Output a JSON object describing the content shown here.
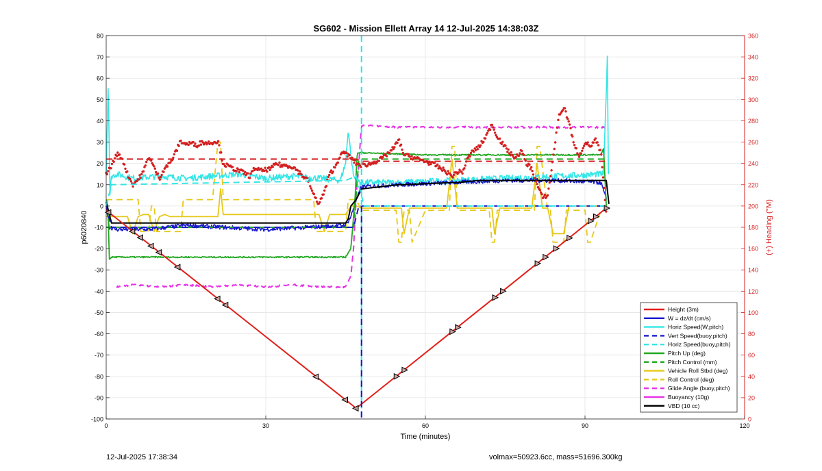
{
  "footer": {
    "timestamp": "12-Jul-2025 17:38:34",
    "mass_info": "volmax=50923.6cc, mass=51696.300kg"
  },
  "chart_data": {
    "type": "line",
    "title": "SG602 - Mission Ellett Array 14 12-Jul-2025 14:38:03Z",
    "xlabel": "Time (minutes)",
    "ylabel_left": "p6020840",
    "ylabel_right": "(+) Heading (°M)",
    "xlim": [
      0,
      120
    ],
    "ylim_left": [
      -100,
      80
    ],
    "ylim_right": [
      0,
      360
    ],
    "xticks": [
      0,
      30,
      60,
      90,
      120
    ],
    "yticks_left": [
      80,
      70,
      60,
      50,
      40,
      30,
      20,
      10,
      0,
      -10,
      -20,
      -30,
      -40,
      -50,
      -60,
      -70,
      -80,
      -90,
      -100
    ],
    "yticks_right": [
      360,
      340,
      320,
      300,
      280,
      260,
      240,
      220,
      200,
      180,
      160,
      140,
      120,
      100,
      80,
      60,
      40,
      20,
      0
    ],
    "grid": true,
    "legend_position": "bottom-right",
    "colors": {
      "height": "#e0201b",
      "w": "#1a1acc",
      "horiz_speed": "#33e6e6",
      "pitch_up": "#22a822",
      "roll": "#e6c81a",
      "glide": "#e633e6",
      "vbd": "#000000",
      "heading": "#d42020",
      "right_axis": "#d42020"
    },
    "legend": [
      {
        "label": "Height (3m)",
        "color": "#e0201b",
        "style": "solid"
      },
      {
        "label": "W = dz/dt (cm/s)",
        "color": "#1a1acc",
        "style": "solid"
      },
      {
        "label": "Horiz Speed(W,pitch)",
        "color": "#33e6e6",
        "style": "solid"
      },
      {
        "label": "Vert Speed(buoy,pitch)",
        "color": "#1a1acc",
        "style": "dashed"
      },
      {
        "label": "Horiz Speed(buoy,pitch)",
        "color": "#33e6e6",
        "style": "dashed"
      },
      {
        "label": "Pitch Up (deg)",
        "color": "#22a822",
        "style": "solid"
      },
      {
        "label": "Pitch Control (mm)",
        "color": "#22a822",
        "style": "dashed"
      },
      {
        "label": "Vehicle Roll Stbd (deg)",
        "color": "#e6c81a",
        "style": "solid"
      },
      {
        "label": "Roll Control (deg)",
        "color": "#e6c81a",
        "style": "dashed"
      },
      {
        "label": "Glide Angle (buoy,pitch)",
        "color": "#e633e6",
        "style": "dashed"
      },
      {
        "label": "Buoyancy (10g)",
        "color": "#e633e6",
        "style": "solid"
      },
      {
        "label": "VBD (10 cc)",
        "color": "#000000",
        "style": "solid"
      }
    ],
    "series": [
      {
        "key": "height",
        "axis": "left",
        "color": "#e0201b",
        "style": "solid",
        "width": 2,
        "x": [
          0,
          47,
          94
        ],
        "y": [
          -2,
          -95,
          -1
        ]
      },
      {
        "key": "w",
        "axis": "left",
        "color": "#1a1acc",
        "style": "solid",
        "width": 1.6,
        "noise": 1.0,
        "x": [
          0,
          0.6,
          2,
          8,
          15,
          22,
          30,
          38,
          45,
          46,
          47,
          48,
          55,
          65,
          75,
          85,
          93,
          94
        ],
        "y": [
          0,
          -10,
          -11,
          -11,
          -9,
          -10,
          -11,
          -10,
          -9,
          -5,
          3,
          9,
          10,
          11,
          12,
          12,
          11,
          3
        ]
      },
      {
        "key": "horiz_speed",
        "axis": "left",
        "color": "#33e6e6",
        "style": "solid",
        "width": 1.6,
        "noise": 1.5,
        "x": [
          0,
          0.4,
          0.7,
          1,
          2,
          5,
          10,
          15,
          20,
          25,
          30,
          35,
          40,
          44,
          45,
          45.5,
          46,
          46.5,
          47,
          48,
          55,
          65,
          75,
          85,
          93,
          93.5,
          94,
          94.2,
          94.4
        ],
        "y": [
          15,
          60,
          5,
          14,
          15,
          13,
          14,
          13,
          14,
          15,
          13,
          14,
          13,
          12,
          20,
          36,
          24,
          14,
          12,
          11,
          11,
          12,
          13,
          14,
          15,
          15,
          55,
          69,
          15
        ]
      },
      {
        "key": "vert_speed_buoy",
        "axis": "left",
        "color": "#1a1acc",
        "style": "dashed",
        "width": 2,
        "x": [
          0,
          1,
          46.5,
          47.5,
          48,
          94
        ],
        "y": [
          0,
          -10,
          -10,
          0,
          0,
          0
        ]
      },
      {
        "key": "horiz_speed_buoy",
        "axis": "left",
        "color": "#33e6e6",
        "style": "dashed",
        "width": 2,
        "x": [
          0,
          1,
          45,
          47,
          48.5,
          93.5,
          94
        ],
        "y": [
          0,
          10,
          12,
          14,
          0,
          0,
          0
        ]
      },
      {
        "key": "pitch_up",
        "axis": "left",
        "color": "#22a822",
        "style": "solid",
        "width": 1.8,
        "noise": 0.3,
        "x": [
          0,
          0.3,
          0.6,
          1,
          5,
          15,
          25,
          35,
          45,
          46,
          46.8,
          47.2,
          48,
          60,
          70,
          80,
          93,
          93.5,
          94
        ],
        "y": [
          3,
          2,
          -25,
          -24,
          -24,
          -24,
          -24,
          -24,
          -24,
          -20,
          5,
          25,
          25,
          24,
          24,
          24,
          24,
          27,
          0
        ]
      },
      {
        "key": "pitch_control",
        "axis": "left",
        "color": "#22a822",
        "style": "dashed",
        "width": 2,
        "x": [
          0,
          1,
          46.5,
          47.5,
          94
        ],
        "y": [
          -10,
          -10,
          -10,
          22,
          22
        ]
      },
      {
        "key": "vehicle_roll",
        "axis": "left",
        "color": "#e6c81a",
        "style": "solid",
        "width": 1.8,
        "x": [
          0,
          1,
          4,
          5,
          6,
          7,
          8,
          9,
          10,
          11,
          12,
          14,
          15,
          16,
          20,
          21,
          21.5,
          22,
          23,
          30,
          35,
          39,
          40,
          41,
          42,
          44,
          45,
          46,
          47,
          48,
          55,
          55.5,
          56,
          57,
          58,
          60,
          64,
          65,
          66,
          70,
          72,
          72.5,
          73,
          74,
          75,
          80,
          81,
          82,
          83,
          84,
          85,
          86,
          87,
          88,
          93,
          94
        ],
        "y": [
          -5,
          -5,
          -5,
          -13,
          -5,
          -4,
          -4,
          -12,
          -5,
          -4,
          -5,
          -5,
          -5,
          -5,
          -5,
          -5,
          8,
          -4,
          -4,
          -4,
          -4,
          -4,
          -4,
          -12,
          -4,
          -4,
          -4,
          0,
          0,
          -1,
          -1,
          -1,
          -13,
          -1,
          -1,
          -1,
          -1,
          22,
          -1,
          -1,
          -1,
          -1,
          -13,
          -1,
          -1,
          -1,
          20,
          -1,
          -1,
          -13,
          -13,
          -13,
          0,
          0,
          0,
          0
        ]
      },
      {
        "key": "roll_control",
        "axis": "left",
        "color": "#e6c81a",
        "style": "dashed",
        "width": 1.8,
        "x": [
          0,
          1,
          6,
          6.5,
          8,
          8.5,
          9,
          9.5,
          14,
          14.5,
          20,
          21,
          21.5,
          22,
          39,
          39.5,
          45,
          45.5,
          47,
          48,
          54.5,
          55,
          55.5,
          56,
          57,
          57.5,
          60,
          64.5,
          65,
          65.5,
          66,
          72,
          72.5,
          73,
          73.5,
          80.5,
          81,
          81.5,
          83,
          83.5,
          84,
          86,
          86.5,
          90,
          90.5,
          91,
          93,
          94
        ],
        "y": [
          3,
          3,
          3,
          -12,
          -12,
          0,
          0,
          -12,
          -12,
          3,
          3,
          30,
          30,
          3,
          3,
          -12,
          -12,
          3,
          3,
          -2,
          -2,
          -17,
          -17,
          -2,
          -2,
          -17,
          -2,
          -2,
          28,
          28,
          -2,
          -2,
          -17,
          -17,
          -2,
          -2,
          28,
          28,
          -2,
          -2,
          -17,
          -17,
          -2,
          -2,
          -17,
          -17,
          -2,
          -2
        ]
      },
      {
        "key": "glide_angle",
        "axis": "left",
        "color": "#e633e6",
        "style": "dashed",
        "width": 2,
        "noise": 0.4,
        "x": [
          2,
          5,
          10,
          15,
          20,
          25,
          30,
          35,
          40,
          45,
          46,
          46.5,
          47,
          47.5,
          48,
          55,
          65,
          75,
          85,
          94
        ],
        "y": [
          -38,
          -37,
          -38,
          -37,
          -38,
          -37,
          -38,
          -37,
          -38,
          -38,
          -33,
          -20,
          5,
          20,
          38,
          37,
          37,
          37,
          37,
          37
        ]
      },
      {
        "key": "vbd",
        "axis": "left",
        "color": "#000000",
        "style": "solid",
        "width": 2,
        "x": [
          0,
          0.5,
          1,
          45,
          45.5,
          46,
          47,
          48,
          55,
          56,
          65,
          66,
          70,
          94,
          94.5
        ],
        "y": [
          2,
          -3,
          -8,
          -8,
          -6,
          0,
          3,
          8,
          10,
          10,
          11,
          11,
          12,
          12,
          1
        ]
      },
      {
        "key": "heading_target",
        "axis": "right",
        "color": "#d42020",
        "style": "dashed",
        "width": 2,
        "x": [
          0,
          46.5,
          47,
          48,
          94
        ],
        "y": [
          244,
          244,
          244,
          242,
          242
        ]
      },
      {
        "key": "heading",
        "axis": "right",
        "color": "#d42020",
        "style": "dots",
        "x": [
          0,
          1,
          2,
          3,
          4,
          5,
          6,
          7,
          8,
          9,
          10,
          11,
          12,
          13,
          14,
          15,
          16,
          17,
          18,
          19,
          20,
          21,
          22,
          23,
          24,
          25,
          26,
          27,
          28,
          29,
          30,
          31,
          32,
          33,
          34,
          35,
          36,
          37,
          38,
          39,
          40,
          41,
          42,
          43,
          44,
          45,
          46,
          47,
          48,
          50,
          52,
          54,
          55,
          56,
          58,
          60,
          62,
          64,
          65,
          66,
          67,
          68,
          69,
          70,
          71,
          72,
          72.5,
          73,
          74,
          75,
          76,
          77,
          78,
          79,
          80,
          81,
          82,
          83,
          84,
          85,
          86,
          87,
          88,
          89,
          90,
          91,
          92,
          93,
          94
        ],
        "y": [
          230,
          238,
          249,
          245,
          230,
          220,
          225,
          232,
          247,
          236,
          226,
          236,
          240,
          250,
          261,
          258,
          259,
          257,
          260,
          259,
          260,
          261,
          240,
          237,
          235,
          233,
          231,
          228,
          236,
          233,
          234,
          235,
          240,
          238,
          238,
          237,
          233,
          228,
          224,
          210,
          202,
          213,
          230,
          236,
          248,
          250,
          245,
          240,
          238,
          240,
          245,
          254,
          262,
          248,
          245,
          242,
          238,
          232,
          228,
          232,
          232,
          245,
          252,
          255,
          262,
          271,
          278,
          270,
          262,
          255,
          249,
          245,
          252,
          240,
          235,
          220,
          208,
          210,
          245,
          283,
          293,
          279,
          256,
          247,
          260,
          256,
          262,
          250,
          193
        ]
      }
    ],
    "markers": {
      "color": "#000000",
      "down_x": [
        0.5,
        5,
        6.5,
        8.5,
        10,
        13.5,
        21,
        22.5,
        39.5,
        45,
        47
      ],
      "up_x": [
        54.5,
        56,
        65,
        66,
        73,
        74.5,
        81,
        82.5,
        84.5,
        87,
        91,
        92,
        94
      ]
    }
  }
}
